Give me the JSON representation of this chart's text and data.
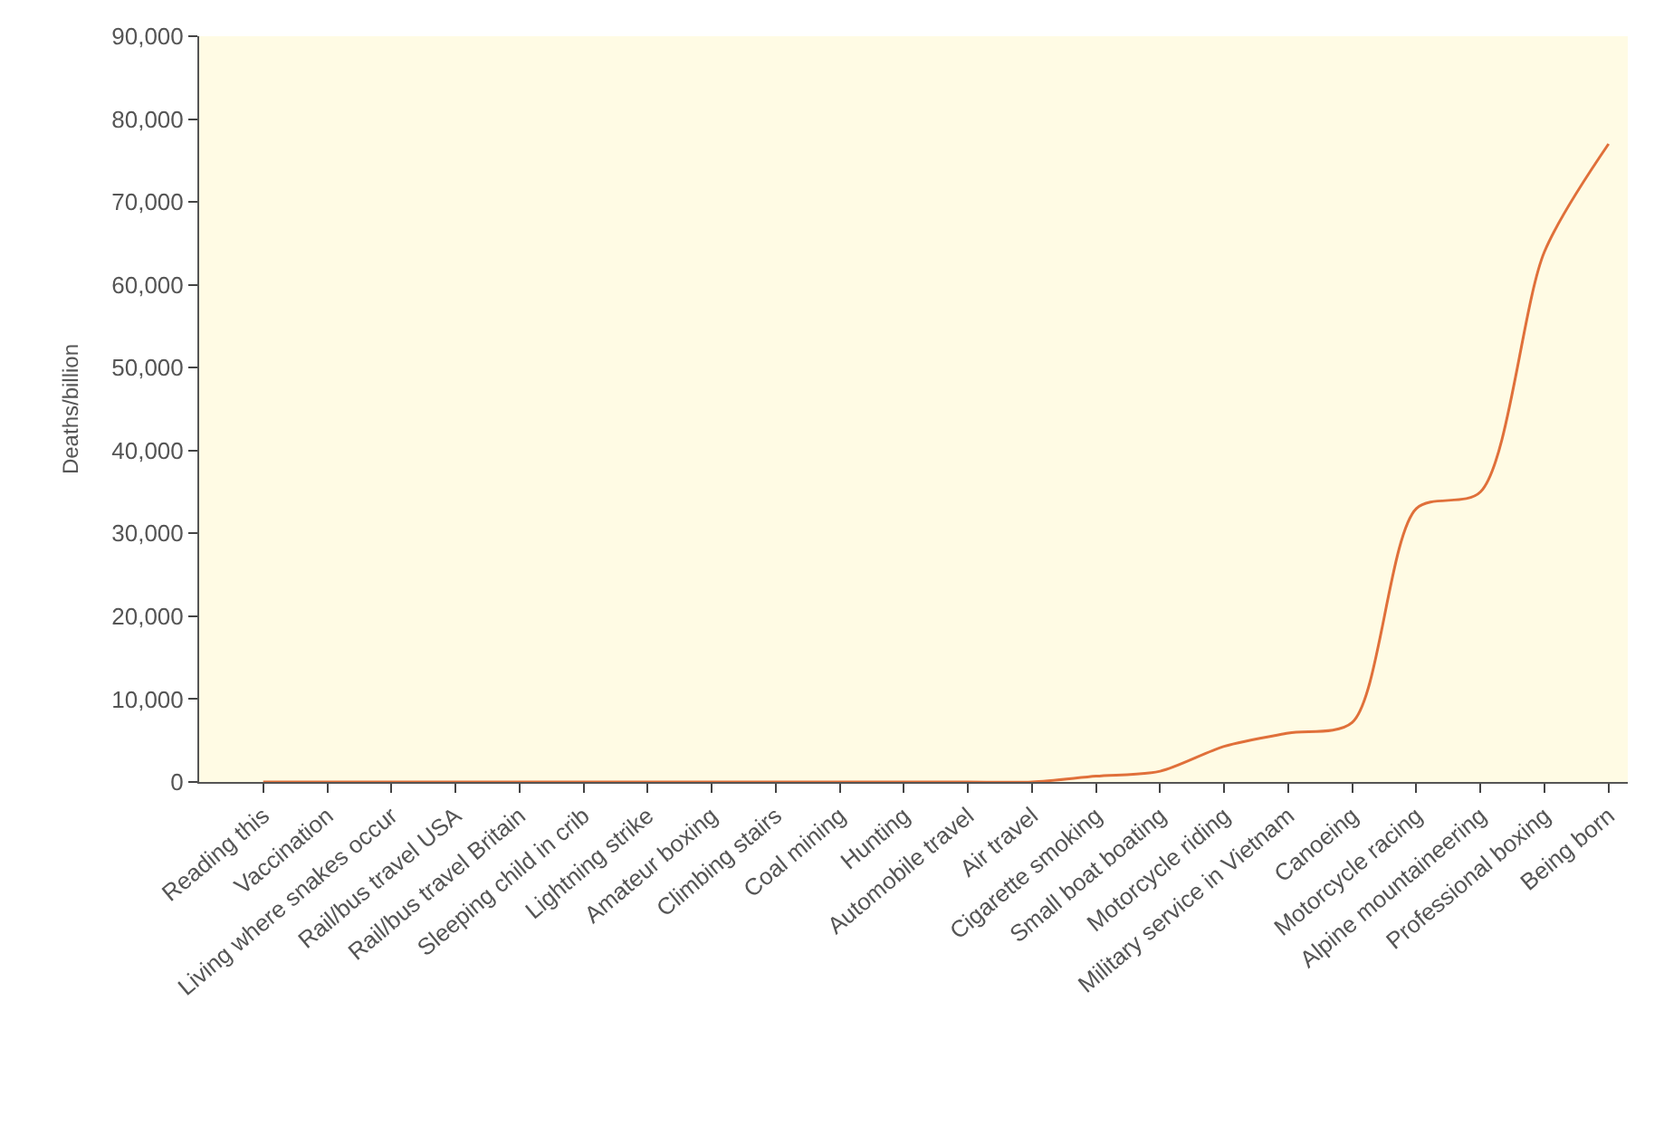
{
  "chart_data": {
    "type": "line",
    "ylabel": "Deaths/billion",
    "categories": [
      "Reading this",
      "Vaccination",
      "Living where snakes occur",
      "Rail/bus travel USA",
      "Rail/bus travel Britain",
      "Sleeping child in crib",
      "Lightning strike",
      "Amateur boxing",
      "Climbing stairs",
      "Coal mining",
      "Hunting",
      "Automobile travel",
      "Air travel",
      "Cigarette smoking",
      "Small boat boating",
      "Motorcycle riding",
      "Military service in Vietnam",
      "Canoeing",
      "Motorcycle racing",
      "Alpine mountaineering",
      "Professional boxing",
      "Being born"
    ],
    "series": [
      {
        "color": "#e0703a",
        "values": [
          0,
          0,
          0,
          0,
          0,
          0,
          0,
          0,
          0,
          0,
          0,
          0,
          0,
          700,
          1300,
          4300,
          5900,
          7200,
          33000,
          35000,
          64000,
          77000
        ]
      }
    ],
    "ylim": [
      0,
      90000
    ],
    "yticks": [
      {
        "value": 0,
        "label": "0"
      },
      {
        "value": 10000,
        "label": "10,000"
      },
      {
        "value": 20000,
        "label": "20,000"
      },
      {
        "value": 30000,
        "label": "30,000"
      },
      {
        "value": 40000,
        "label": "40,000"
      },
      {
        "value": 50000,
        "label": "50,000"
      },
      {
        "value": 60000,
        "label": "60,000"
      },
      {
        "value": 70000,
        "label": "70,000"
      },
      {
        "value": 80000,
        "label": "80,000"
      },
      {
        "value": 90000,
        "label": "90,000"
      }
    ],
    "grid": false,
    "marker": "none",
    "line_style": "solid"
  }
}
